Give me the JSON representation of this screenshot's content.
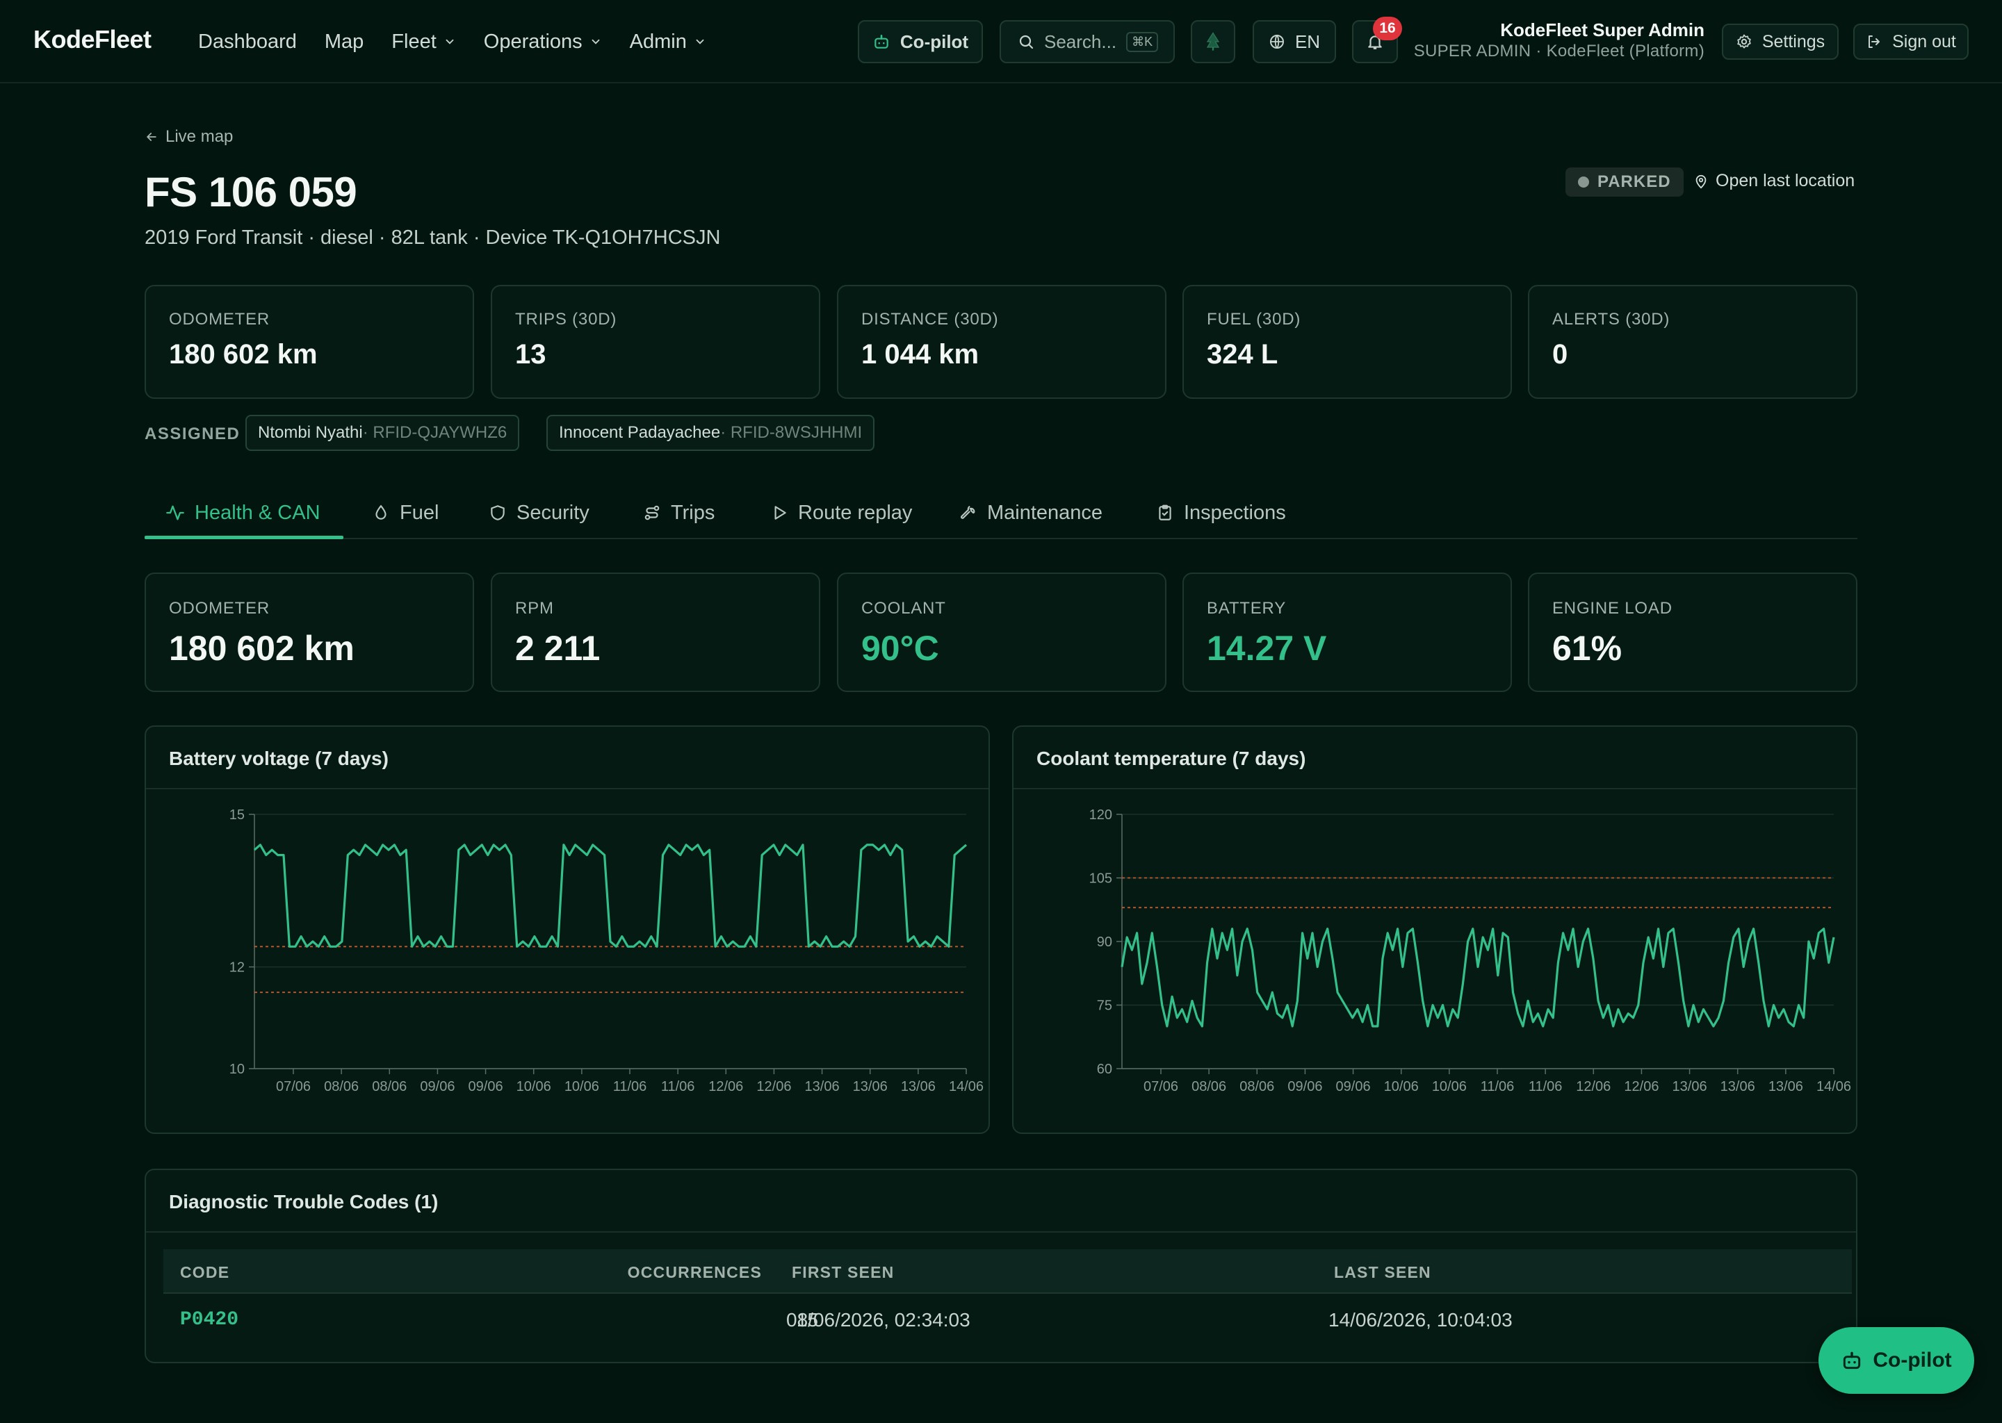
{
  "app": {
    "brand": "KodeFleet",
    "nav": [
      {
        "label": "Dashboard",
        "dropdown": false
      },
      {
        "label": "Map",
        "dropdown": false
      },
      {
        "label": "Fleet",
        "dropdown": true
      },
      {
        "label": "Operations",
        "dropdown": true
      },
      {
        "label": "Admin",
        "dropdown": true
      }
    ],
    "copilot_label": "Co-pilot",
    "search_placeholder": "Search...",
    "search_shortcut": "⌘K",
    "language": "EN",
    "notifications_count": "16",
    "user_name": "KodeFleet Super Admin",
    "user_role": "SUPER ADMIN · KodeFleet (Platform)",
    "settings_label": "Settings",
    "signout_label": "Sign out"
  },
  "header": {
    "back_label": "Live map",
    "title": "FS 106 059",
    "subtitle": "2019 Ford Transit · diesel · 82L tank · Device TK-Q1OH7HCSJN",
    "status": "PARKED",
    "open_location_label": "Open last location"
  },
  "summary_stats": [
    {
      "label": "ODOMETER",
      "value": "180 602 km"
    },
    {
      "label": "TRIPS (30D)",
      "value": "13"
    },
    {
      "label": "DISTANCE (30D)",
      "value": "1 044 km"
    },
    {
      "label": "FUEL (30D)",
      "value": "324 L"
    },
    {
      "label": "ALERTS (30D)",
      "value": "0"
    }
  ],
  "assigned": {
    "label": "ASSIGNED",
    "drivers": [
      {
        "name": "Ntombi Nyathi",
        "rfid": " · RFID-QJAYWHZ6"
      },
      {
        "name": "Innocent Padayachee",
        "rfid": " · RFID-8WSJHHMI"
      }
    ]
  },
  "tabs": [
    {
      "label": "Health & CAN",
      "icon": "activity-icon",
      "active": true
    },
    {
      "label": "Fuel",
      "icon": "droplet-icon",
      "active": false
    },
    {
      "label": "Security",
      "icon": "shield-icon",
      "active": false
    },
    {
      "label": "Trips",
      "icon": "route-icon",
      "active": false
    },
    {
      "label": "Route replay",
      "icon": "play-icon",
      "active": false
    },
    {
      "label": "Maintenance",
      "icon": "wrench-icon",
      "active": false
    },
    {
      "label": "Inspections",
      "icon": "clipboard-icon",
      "active": false
    }
  ],
  "health_stats": [
    {
      "label": "ODOMETER",
      "value": "180 602 km",
      "highlight": false
    },
    {
      "label": "RPM",
      "value": "2 211",
      "highlight": false
    },
    {
      "label": "COOLANT",
      "value": "90°C",
      "highlight": true
    },
    {
      "label": "BATTERY",
      "value": "14.27 V",
      "highlight": true
    },
    {
      "label": "ENGINE LOAD",
      "value": "61%",
      "highlight": false
    }
  ],
  "colors": {
    "background": "#03150f",
    "accent": "#34c08b",
    "threshold": "#c2582f",
    "badge_red": "#e0343c"
  },
  "chart_data": [
    {
      "type": "line",
      "title": "Battery voltage (7 days)",
      "ylim": [
        10,
        15
      ],
      "yticks": [
        10,
        12,
        15
      ],
      "xtick_labels": [
        "07/06",
        "08/06",
        "08/06",
        "09/06",
        "09/06",
        "10/06",
        "10/06",
        "11/06",
        "11/06",
        "12/06",
        "12/06",
        "13/06",
        "13/06",
        "13/06",
        "14/06"
      ],
      "thresholds": [
        12.4,
        11.5
      ],
      "series": [
        {
          "values": [
            14.3,
            14.4,
            14.2,
            14.3,
            14.2,
            14.2,
            12.4,
            12.4,
            12.6,
            12.4,
            12.5,
            12.4,
            12.6,
            12.4,
            12.4,
            12.5,
            14.2,
            14.3,
            14.2,
            14.4,
            14.3,
            14.2,
            14.4,
            14.3,
            14.4,
            14.2,
            14.3,
            12.4,
            12.6,
            12.4,
            12.5,
            12.4,
            12.6,
            12.4,
            12.4,
            14.3,
            14.4,
            14.2,
            14.3,
            14.4,
            14.2,
            14.4,
            14.3,
            14.4,
            14.2,
            12.4,
            12.5,
            12.4,
            12.6,
            12.4,
            12.4,
            12.6,
            12.4,
            14.4,
            14.2,
            14.4,
            14.3,
            14.2,
            14.4,
            14.3,
            14.2,
            12.5,
            12.4,
            12.6,
            12.4,
            12.4,
            12.5,
            12.4,
            12.6,
            12.4,
            14.2,
            14.4,
            14.3,
            14.2,
            14.4,
            14.3,
            14.4,
            14.2,
            14.3,
            12.4,
            12.6,
            12.4,
            12.5,
            12.4,
            12.4,
            12.6,
            12.4,
            14.2,
            14.3,
            14.4,
            14.2,
            14.4,
            14.3,
            14.2,
            14.4,
            12.4,
            12.5,
            12.4,
            12.6,
            12.4,
            12.4,
            12.5,
            12.4,
            12.6,
            14.3,
            14.4,
            14.4,
            14.3,
            14.4,
            14.2,
            14.4,
            14.3,
            12.5,
            12.6,
            12.4,
            12.5,
            12.4,
            12.6,
            12.5,
            12.4,
            14.2,
            14.3,
            14.4
          ]
        }
      ]
    },
    {
      "type": "line",
      "title": "Coolant temperature (7 days)",
      "ylim": [
        60,
        120
      ],
      "yticks": [
        60,
        75,
        90,
        105,
        120
      ],
      "xtick_labels": [
        "07/06",
        "08/06",
        "08/06",
        "09/06",
        "09/06",
        "10/06",
        "10/06",
        "11/06",
        "11/06",
        "12/06",
        "12/06",
        "13/06",
        "13/06",
        "13/06",
        "14/06"
      ],
      "thresholds": [
        105,
        98
      ],
      "series": [
        {
          "values": [
            84,
            91,
            88,
            92,
            80,
            85,
            92,
            84,
            75,
            70,
            77,
            72,
            74,
            71,
            76,
            72,
            70,
            85,
            93,
            86,
            92,
            88,
            93,
            82,
            90,
            93,
            88,
            78,
            76,
            74,
            78,
            73,
            72,
            75,
            70,
            76,
            92,
            86,
            92,
            84,
            90,
            93,
            86,
            78,
            76,
            74,
            72,
            74,
            71,
            75,
            70,
            70,
            86,
            92,
            88,
            93,
            84,
            92,
            93,
            85,
            76,
            70,
            75,
            72,
            75,
            70,
            74,
            72,
            80,
            90,
            93,
            84,
            91,
            88,
            93,
            82,
            92,
            91,
            78,
            73,
            70,
            76,
            71,
            73,
            70,
            74,
            72,
            85,
            92,
            88,
            93,
            84,
            90,
            93,
            86,
            76,
            72,
            75,
            70,
            74,
            71,
            73,
            72,
            75,
            85,
            91,
            86,
            93,
            84,
            92,
            93,
            85,
            76,
            70,
            75,
            71,
            74,
            72,
            70,
            72,
            76,
            85,
            91,
            93,
            84,
            90,
            93,
            85,
            76,
            70,
            75,
            72,
            74,
            71,
            70,
            75,
            72,
            90,
            86,
            92,
            93,
            85,
            91
          ]
        }
      ]
    }
  ],
  "dtc": {
    "title": "Diagnostic Trouble Codes (1)",
    "headers": {
      "code": "CODE",
      "occurrences": "OCCURRENCES",
      "first_seen": "FIRST SEEN",
      "last_seen": "LAST SEEN"
    },
    "rows": [
      {
        "code": "P0420",
        "occurrences": "15",
        "first_seen": "08/06/2026, 02:34:03",
        "last_seen": "14/06/2026, 10:04:03"
      }
    ]
  },
  "fab_label": "Co-pilot"
}
